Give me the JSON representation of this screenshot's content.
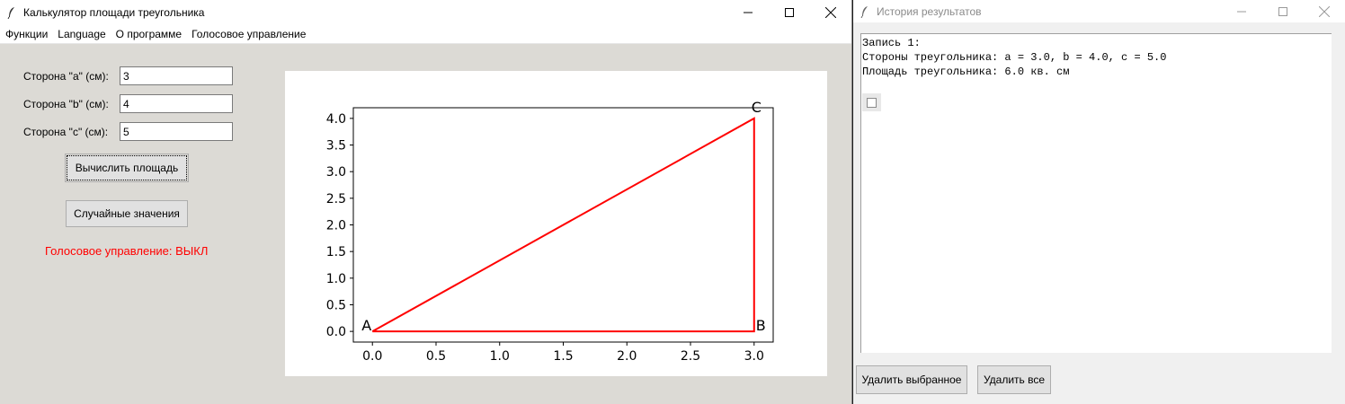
{
  "main_window": {
    "title": "Калькулятор площади треугольника",
    "menu": [
      "Функции",
      "Language",
      "О программе",
      "Голосовое управление"
    ],
    "fields": [
      {
        "label": "Сторона \"a\" (см):",
        "value": "3"
      },
      {
        "label": "Сторона \"b\" (см):",
        "value": "4"
      },
      {
        "label": "Сторона \"c\" (см):",
        "value": "5"
      }
    ],
    "calc_button": "Вычислить площадь",
    "random_button": "Случайные значения",
    "voice_status": "Голосовое управление: ВЫКЛ",
    "voice_color": "#ff0000"
  },
  "chart_data": {
    "type": "line",
    "series": [
      {
        "x": [
          0,
          3,
          3,
          0
        ],
        "y": [
          0,
          0,
          4,
          0
        ],
        "color": "#ff0000"
      }
    ],
    "vertex_labels": [
      {
        "text": "A",
        "x": 0,
        "y": 0
      },
      {
        "text": "B",
        "x": 3,
        "y": 0
      },
      {
        "text": "C",
        "x": 3,
        "y": 4
      }
    ],
    "xlim": [
      -0.15,
      3.15
    ],
    "ylim": [
      -0.2,
      4.2
    ],
    "x_ticks": [
      "0.0",
      "0.5",
      "1.0",
      "1.5",
      "2.0",
      "2.5",
      "3.0"
    ],
    "y_ticks": [
      "0.0",
      "0.5",
      "1.0",
      "1.5",
      "2.0",
      "2.5",
      "3.0",
      "3.5",
      "4.0"
    ],
    "title": "",
    "xlabel": "",
    "ylabel": "",
    "grid": false
  },
  "history_window": {
    "title": "История результатов",
    "lines": [
      "Запись 1:",
      "Стороны треугольника: a = 3.0, b = 4.0, c = 5.0",
      "Площадь треугольника: 6.0 кв. см"
    ],
    "delete_selected_button": "Удалить выбранное",
    "delete_all_button": "Удалить все"
  }
}
